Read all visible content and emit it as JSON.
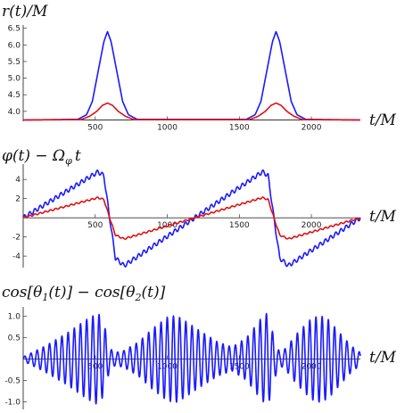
{
  "chart_data": [
    {
      "type": "line",
      "title": "",
      "ylabel": "r(t)/M",
      "xlabel": "t/M",
      "xlim": [
        0,
        2340
      ],
      "ylim": [
        3.7,
        6.6
      ],
      "x_ticks": [
        500,
        1000,
        1500,
        2000
      ],
      "y_ticks": [
        4.0,
        4.5,
        5.0,
        5.5,
        6.0,
        6.5
      ],
      "y_tick_labels": [
        "4.0",
        "4.5",
        "5.0",
        "5.5",
        "6.0",
        "6.5"
      ],
      "x_axis_at": 3.74,
      "grid": false,
      "series": [
        {
          "color": "#1a1aff",
          "points": [
            [
              0,
              3.74
            ],
            [
              380,
              3.76
            ],
            [
              440,
              3.9
            ],
            [
              480,
              4.3
            ],
            [
              520,
              5.2
            ],
            [
              560,
              6.1
            ],
            [
              585,
              6.4
            ],
            [
              610,
              6.1
            ],
            [
              650,
              5.2
            ],
            [
              690,
              4.3
            ],
            [
              730,
              3.9
            ],
            [
              790,
              3.76
            ],
            [
              1550,
              3.76
            ],
            [
              1610,
              3.9
            ],
            [
              1650,
              4.3
            ],
            [
              1690,
              5.2
            ],
            [
              1730,
              6.1
            ],
            [
              1755,
              6.4
            ],
            [
              1780,
              6.1
            ],
            [
              1820,
              5.2
            ],
            [
              1860,
              4.3
            ],
            [
              1900,
              3.9
            ],
            [
              1960,
              3.76
            ],
            [
              2340,
              3.74
            ]
          ]
        },
        {
          "color": "#e01010",
          "points": [
            [
              0,
              3.74
            ],
            [
              400,
              3.75
            ],
            [
              460,
              3.85
            ],
            [
              510,
              4.0
            ],
            [
              550,
              4.18
            ],
            [
              585,
              4.25
            ],
            [
              620,
              4.18
            ],
            [
              660,
              4.0
            ],
            [
              710,
              3.85
            ],
            [
              770,
              3.75
            ],
            [
              1570,
              3.75
            ],
            [
              1630,
              3.85
            ],
            [
              1680,
              4.0
            ],
            [
              1720,
              4.18
            ],
            [
              1755,
              4.25
            ],
            [
              1790,
              4.18
            ],
            [
              1830,
              4.0
            ],
            [
              1880,
              3.85
            ],
            [
              1940,
              3.75
            ],
            [
              2340,
              3.74
            ]
          ]
        }
      ]
    },
    {
      "type": "line",
      "title": "",
      "ylabel": "φ(t) − Ω_φ t",
      "xlabel": "t/M",
      "xlim": [
        0,
        2340
      ],
      "ylim": [
        -5.2,
        5.6
      ],
      "x_ticks": [
        500,
        1000,
        1500,
        2000
      ],
      "y_ticks": [
        -4,
        -2,
        2,
        4
      ],
      "y_tick_labels": [
        "-4",
        "-2",
        "2",
        "4"
      ],
      "x_axis_at": 0,
      "grid": false,
      "series": [
        {
          "color": "#1a1aff",
          "wiggle_amplitude": 0.22,
          "wiggle_period": 36,
          "points": [
            [
              0,
              0
            ],
            [
              520,
              4.8
            ],
            [
              560,
              4.4
            ],
            [
              600,
              0
            ],
            [
              640,
              -4.2
            ],
            [
              700,
              -5.0
            ],
            [
              1660,
              4.8
            ],
            [
              1700,
              4.4
            ],
            [
              1740,
              0
            ],
            [
              1780,
              -4.2
            ],
            [
              1840,
              -5.0
            ],
            [
              2340,
              0
            ]
          ]
        },
        {
          "color": "#e01010",
          "wiggle_amplitude": 0.08,
          "wiggle_period": 36,
          "points": [
            [
              0,
              0
            ],
            [
              520,
              2.1
            ],
            [
              560,
              1.9
            ],
            [
              600,
              0
            ],
            [
              640,
              -1.8
            ],
            [
              700,
              -2.2
            ],
            [
              1660,
              2.1
            ],
            [
              1700,
              1.9
            ],
            [
              1740,
              0
            ],
            [
              1780,
              -1.8
            ],
            [
              1840,
              -2.2
            ],
            [
              2340,
              0
            ]
          ]
        }
      ]
    },
    {
      "type": "line",
      "title": "",
      "ylabel": "cos[θ_1(t)] − cos[θ_2(t)]",
      "xlabel": "t/M",
      "xlim": [
        0,
        2340
      ],
      "ylim": [
        -1.18,
        1.22
      ],
      "x_ticks": [
        500,
        1000,
        1500,
        2000
      ],
      "y_ticks": [
        -1.0,
        -0.5,
        0.5,
        1.0
      ],
      "y_tick_labels": [
        "-1.0",
        "-0.5",
        "0.5",
        "1.0"
      ],
      "x_axis_at": 0,
      "grid": false,
      "series": [
        {
          "color": "#1a1aff",
          "envelope_points": [
            [
              0,
              0.05
            ],
            [
              60,
              0.15
            ],
            [
              150,
              0.3
            ],
            [
              300,
              0.6
            ],
            [
              450,
              0.95
            ],
            [
              520,
              1.08
            ],
            [
              560,
              0.85
            ],
            [
              600,
              0.25
            ],
            [
              640,
              0.15
            ],
            [
              700,
              0.2
            ],
            [
              800,
              0.4
            ],
            [
              900,
              0.72
            ],
            [
              1000,
              0.98
            ],
            [
              1060,
              1.02
            ],
            [
              1100,
              0.95
            ],
            [
              1200,
              0.72
            ],
            [
              1350,
              0.4
            ],
            [
              1450,
              0.28
            ],
            [
              1550,
              0.5
            ],
            [
              1650,
              0.95
            ],
            [
              1700,
              1.1
            ],
            [
              1740,
              0.5
            ],
            [
              1780,
              0.15
            ],
            [
              1820,
              0.25
            ],
            [
              1900,
              0.6
            ],
            [
              2000,
              0.95
            ],
            [
              2060,
              1.02
            ],
            [
              2120,
              0.92
            ],
            [
              2200,
              0.6
            ],
            [
              2280,
              0.3
            ],
            [
              2340,
              0.15
            ]
          ],
          "oscillation_period": 43
        }
      ]
    }
  ],
  "labels": {
    "panel1_y": "r(t)/M",
    "panel1_x": "t/M",
    "panel2_y": "φ(t) − Ω",
    "panel2_y_sub": "φ",
    "panel2_y_tail": "t",
    "panel2_x": "t/M",
    "panel3_y_a": "cos[θ",
    "panel3_y_sub1": "1",
    "panel3_y_b": "(t)] − cos[θ",
    "panel3_y_sub2": "2",
    "panel3_y_c": "(t)]",
    "panel3_x": "t/M"
  }
}
